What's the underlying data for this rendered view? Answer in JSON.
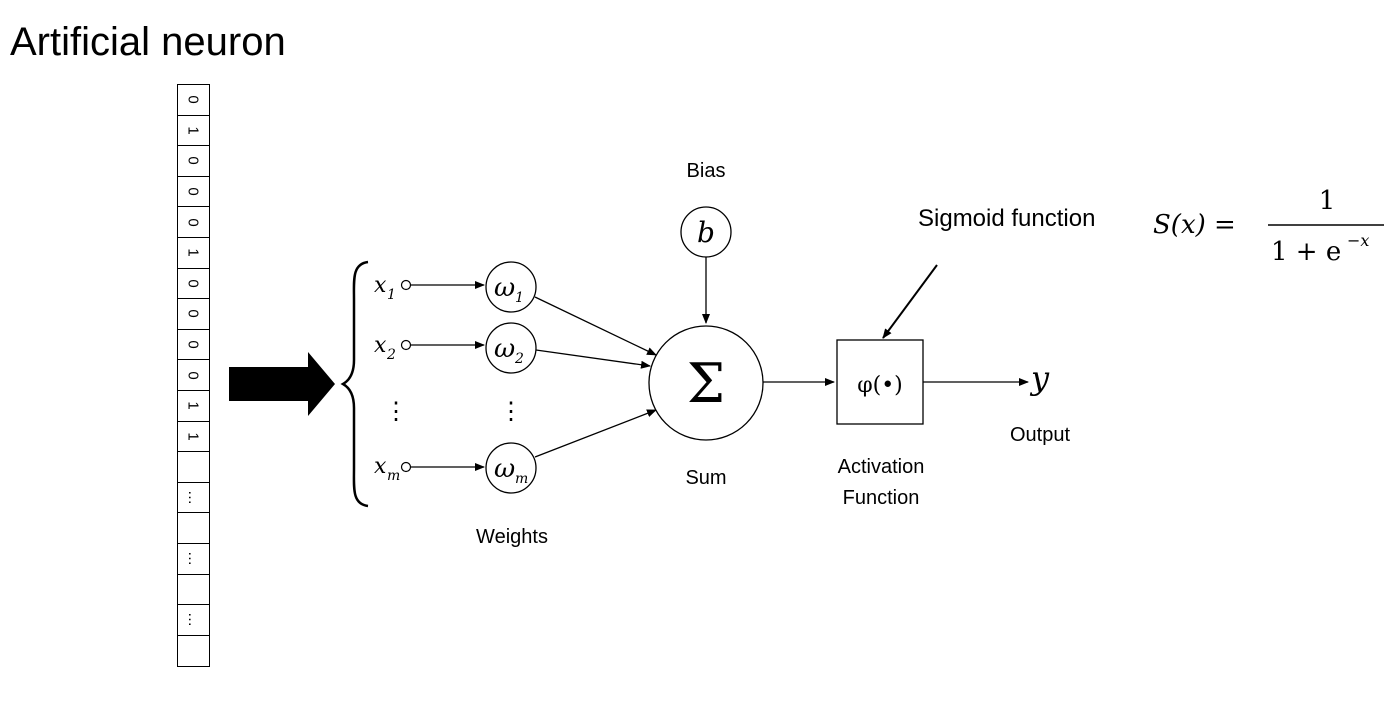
{
  "title": "Artificial neuron",
  "input_vector": [
    "0",
    "1",
    "0",
    "0",
    "0",
    "1",
    "0",
    "0",
    "0",
    "0",
    "1",
    "1",
    "",
    "…",
    "",
    "…",
    "",
    "…",
    ""
  ],
  "diagram": {
    "inputs": [
      {
        "label": "x",
        "subscript": "1"
      },
      {
        "label": "x",
        "subscript": "2"
      },
      {
        "label": "⋮",
        "subscript": ""
      },
      {
        "label": "x",
        "subscript": "m"
      }
    ],
    "weights": [
      {
        "label": "ω",
        "subscript": "1"
      },
      {
        "label": "ω",
        "subscript": "2"
      },
      {
        "label": "⋮",
        "subscript": ""
      },
      {
        "label": "ω",
        "subscript": "m"
      }
    ],
    "weights_label": "Weights",
    "bias_label": "Bias",
    "bias_symbol": "b",
    "sum_symbol": "Σ",
    "sum_label": "Sum",
    "activation_symbol": "φ(•)",
    "activation_label_line1": "Activation",
    "activation_label_line2": "Function",
    "output_symbol": "y",
    "output_label": "Output"
  },
  "sigmoid": {
    "label": "Sigmoid function",
    "lhs": "S(x) =",
    "numerator": "1",
    "denominator_base": "1 + e",
    "denominator_exponent": "−x"
  }
}
